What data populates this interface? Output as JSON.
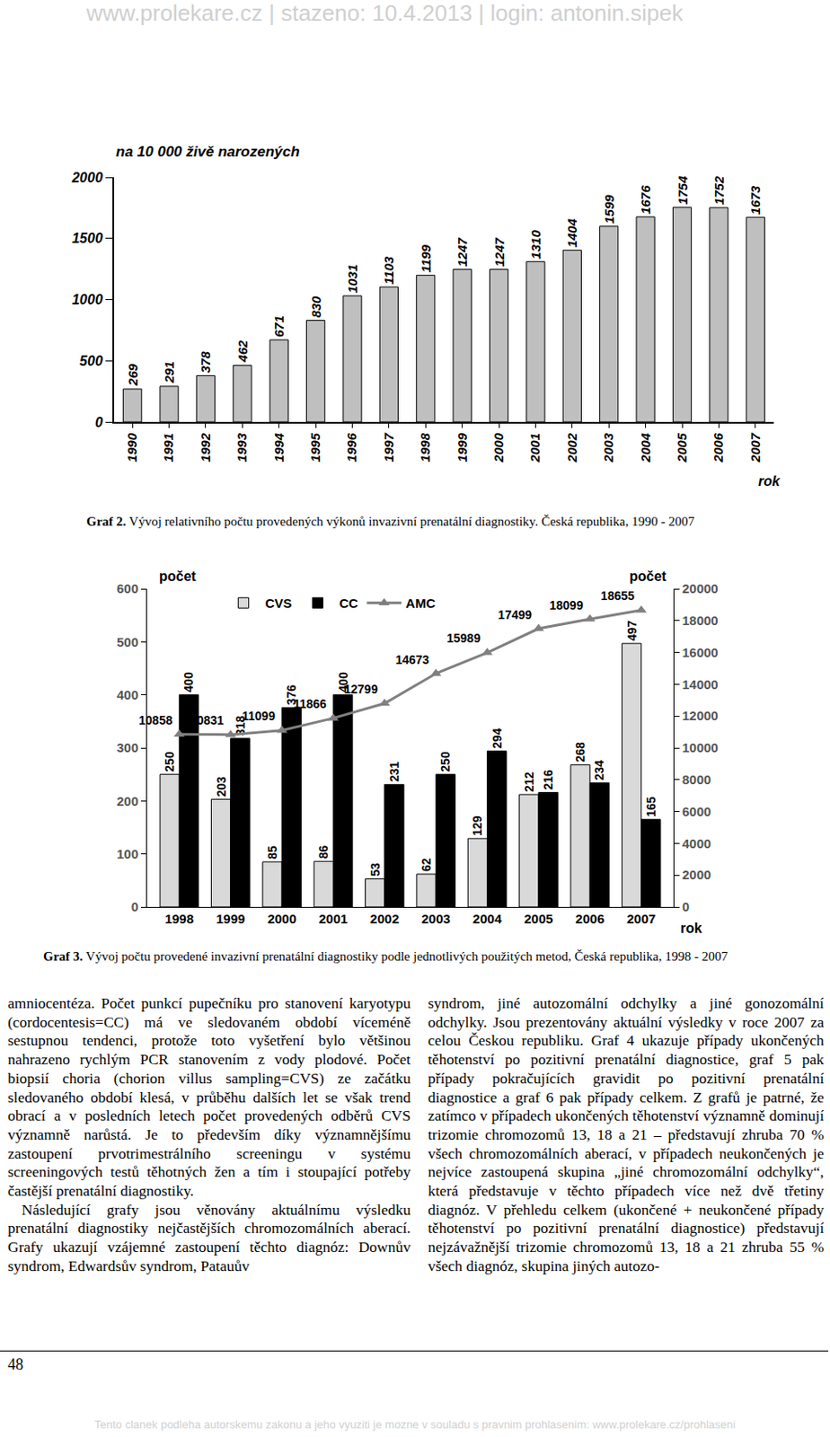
{
  "header": "www.prolekare.cz | stazeno: 10.4.2013 | login: antonin.sipek",
  "chart_data": [
    {
      "type": "bar",
      "ylabel": "na 10 000 živě narozených",
      "xlabel": "rok",
      "categories": [
        "1990",
        "1991",
        "1992",
        "1993",
        "1994",
        "1995",
        "1996",
        "1997",
        "1998",
        "1999",
        "2000",
        "2001",
        "2002",
        "2003",
        "2004",
        "2005",
        "2006",
        "2007"
      ],
      "values": [
        269,
        291,
        378,
        462,
        671,
        830,
        1031,
        1103,
        1199,
        1247,
        1247,
        1310,
        1404,
        1599,
        1676,
        1754,
        1752,
        1673
      ],
      "color": "#bfbfbf",
      "ylim": [
        0,
        2000
      ],
      "yticks": [
        0,
        500,
        1000,
        1500,
        2000
      ],
      "data_labels": true,
      "grid": false
    },
    {
      "type": "bar",
      "ylabel": "počet",
      "y2label": "počet",
      "xlabel": "rok",
      "categories": [
        "1998",
        "1999",
        "2000",
        "2001",
        "2002",
        "2003",
        "2004",
        "2005",
        "2006",
        "2007"
      ],
      "series": [
        {
          "name": "CVS",
          "color": "#d9d9d9",
          "values": [
            250,
            203,
            85,
            86,
            53,
            62,
            129,
            212,
            268,
            497
          ]
        },
        {
          "name": "CC",
          "color": "#000000",
          "values": [
            400,
            318,
            376,
            400,
            231,
            250,
            294,
            216,
            234,
            165
          ]
        },
        {
          "name": "AMC",
          "type": "line",
          "axis": "y2",
          "color": "#808080",
          "marker": "triangle-up",
          "values": [
            10858,
            10831,
            11099,
            11866,
            12799,
            14673,
            15989,
            17499,
            18099,
            18655
          ]
        }
      ],
      "ylim": [
        0,
        600
      ],
      "yticks": [
        0,
        100,
        200,
        300,
        400,
        500,
        600
      ],
      "y2lim": [
        0,
        20000
      ],
      "y2ticks": [
        0,
        2000,
        4000,
        6000,
        8000,
        10000,
        12000,
        14000,
        16000,
        18000,
        20000
      ],
      "data_labels": true,
      "legend": "top",
      "grid": false
    }
  ],
  "captions": [
    {
      "label": "Graf 2.",
      "text": "Vývoj relativního počtu provedených výkonů invazivní prenatální diagnostiky. Česká republika, 1990 - 2007"
    },
    {
      "label": "Graf 3.",
      "text": "Vývoj počtu provedené invazivní prenatální diagnostiky podle jednotlivých použitých metod, Česká republika, 1998 - 2007"
    }
  ],
  "columns": [
    [
      "amniocentéza. Počet punkcí pupečníku pro stanovení karyotypu (cordocentesis=CC) má ve sledovaném období víceméně sestupnou tendenci, protože toto vyšetření bylo většinou nahrazeno rychlým PCR stanovením z vody plodové. Počet biopsií choria (chorion villus sampling=CVS) ze začátku sledovaného období klesá, v průběhu dalších let se však trend obrací a v posledních letech počet provedených odběrů CVS významně narůstá. Je to především díky významnějšímu zastoupení prvotrimestrálního screeningu v systému screeningových testů těhotných žen a tím i stoupající potřeby častější prenatální diagnostiky.",
      "Následující grafy jsou věnovány aktuálnímu výsledku prenatální diagnostiky nejčastějších chromozomálních aberací. Grafy ukazují vzájemné zastoupení těchto diagnóz: Downův syndrom, Edwardsův syndrom, Patauův"
    ],
    [
      "syndrom, jiné autozomální odchylky a jiné gonozomální odchylky. Jsou prezentovány aktuální výsledky v roce 2007 za celou Českou republiku. Graf 4 ukazuje případy ukončených těhotenství po pozitivní prenatální diagnostice, graf 5 pak případy pokračujících gravidit po pozitivní prenatální diagnostice a graf 6 pak případy celkem. Z grafů je patrné, že zatímco v případech ukončených těhotenství významně dominují trizomie chromozomů 13, 18 a 21 – představují zhruba 70 % všech chromozomálních aberací, v případech neukončených je nejvíce zastoupená skupina „jiné chromozomální odchylky“, která představuje v těchto případech více než dvě třetiny diagnóz. V přehledu celkem (ukončené + neukončené případy těhotenství po pozitivní prenatální diagnostice) představují nejzávažnější trizomie chromozomů 13, 18 a 21 zhruba 55 % všech diagnóz, skupina jiných autozo-"
    ]
  ],
  "page_number": "48",
  "footer": "Tento clanek podleha autorskemu zakonu a jeho vyuziti je mozne v souladu s pravnim prohlasenim: www.prolekare.cz/prohlaseni"
}
